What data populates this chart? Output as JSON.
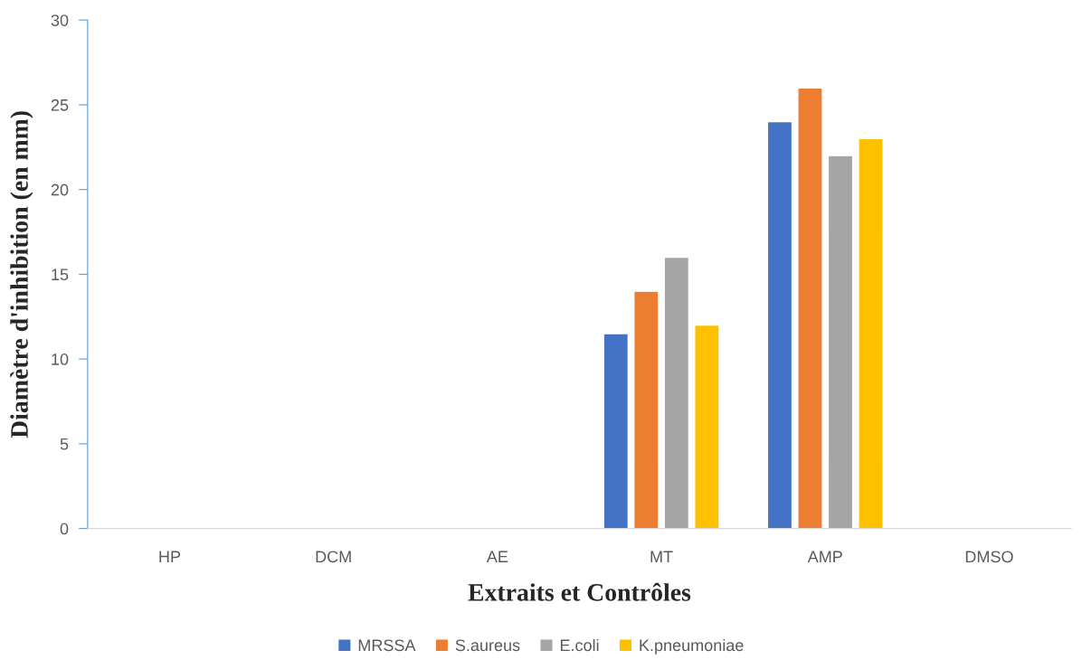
{
  "chart_data": {
    "type": "bar",
    "xlabel": "Extraits et Contrôles",
    "ylabel": "Diamètre d'inhibition (en mm)",
    "categories": [
      "HP",
      "DCM",
      "AE",
      "MT",
      "AMP",
      "DMSO"
    ],
    "series": [
      {
        "name": "MRSSA",
        "color": "#4472c4",
        "values": [
          null,
          null,
          null,
          11.5,
          24,
          null
        ]
      },
      {
        "name": "S.aureus",
        "color": "#ed7d31",
        "values": [
          null,
          null,
          null,
          14,
          26,
          null
        ]
      },
      {
        "name": "E.coli",
        "color": "#a5a5a5",
        "values": [
          null,
          null,
          null,
          16,
          22,
          null
        ]
      },
      {
        "name": "K.pneumoniae",
        "color": "#ffc000",
        "values": [
          null,
          null,
          null,
          12,
          23,
          null
        ]
      }
    ],
    "ylim": [
      0,
      30
    ],
    "yticks": [
      0,
      5,
      10,
      15,
      20,
      25,
      30
    ],
    "grid": false,
    "legend": "bottom"
  }
}
